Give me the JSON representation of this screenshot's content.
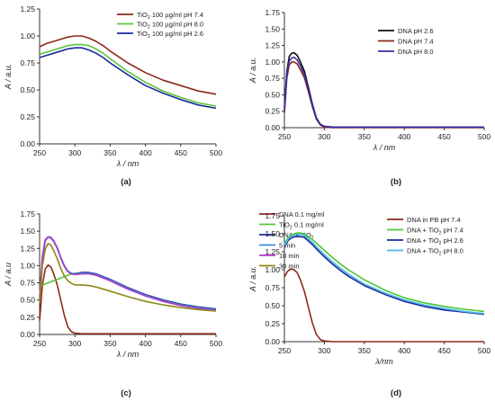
{
  "chart_data": [
    {
      "type": "line",
      "panel_label": "(a)",
      "xlabel": "λ / nm",
      "ylabel": "A / a.u.",
      "xlim": [
        250,
        500
      ],
      "ylim": [
        0,
        1.25
      ],
      "xticks": [
        "250",
        "300",
        "350",
        "400",
        "450",
        "500"
      ],
      "yticks": [
        "0.00",
        "0.25",
        "0.50",
        "0.75",
        "1.00",
        "1.25"
      ],
      "legend_position": "top-right",
      "series": [
        {
          "name": "TiO2 100 µg/ml pH 7.4",
          "color": "#8b2a1a",
          "x": [
            250,
            260,
            270,
            280,
            290,
            300,
            310,
            320,
            330,
            340,
            350,
            375,
            400,
            425,
            450,
            475,
            500
          ],
          "y": [
            0.9,
            0.93,
            0.95,
            0.97,
            0.99,
            1.0,
            1.0,
            0.98,
            0.95,
            0.91,
            0.86,
            0.75,
            0.66,
            0.59,
            0.54,
            0.49,
            0.46
          ]
        },
        {
          "name": "TiO2 100 µg/ml pH 8.0",
          "color": "#5ac43a",
          "x": [
            250,
            260,
            270,
            280,
            290,
            300,
            310,
            320,
            330,
            340,
            350,
            375,
            400,
            425,
            450,
            475,
            500
          ],
          "y": [
            0.83,
            0.85,
            0.87,
            0.89,
            0.91,
            0.92,
            0.92,
            0.91,
            0.88,
            0.84,
            0.79,
            0.67,
            0.57,
            0.49,
            0.43,
            0.38,
            0.35
          ]
        },
        {
          "name": "TiO2 100 µg/ml pH 2.6",
          "color": "#1a2a9a",
          "x": [
            250,
            260,
            270,
            280,
            290,
            300,
            310,
            320,
            330,
            340,
            350,
            375,
            400,
            425,
            450,
            475,
            500
          ],
          "y": [
            0.8,
            0.82,
            0.84,
            0.86,
            0.88,
            0.89,
            0.89,
            0.87,
            0.84,
            0.8,
            0.75,
            0.64,
            0.54,
            0.47,
            0.41,
            0.36,
            0.33
          ]
        }
      ]
    },
    {
      "type": "line",
      "panel_label": "(b)",
      "xlabel": "λ / nm",
      "ylabel": "A / a.u.",
      "xlim": [
        250,
        500
      ],
      "ylim": [
        0,
        1.75
      ],
      "xticks": [
        "250",
        "300",
        "350",
        "400",
        "450",
        "500"
      ],
      "yticks": [
        "0.00",
        "0.25",
        "0.50",
        "0.75",
        "1.00",
        "1.25",
        "1.50",
        "1.75"
      ],
      "legend_position": "top-right",
      "series": [
        {
          "name": "DNA pH 2.6",
          "color": "#111111",
          "x": [
            250,
            253,
            256,
            259,
            262,
            266,
            270,
            275,
            280,
            285,
            290,
            295,
            300,
            310,
            350,
            400,
            450,
            500
          ],
          "y": [
            0.3,
            0.85,
            1.08,
            1.13,
            1.14,
            1.1,
            1.0,
            0.86,
            0.62,
            0.36,
            0.15,
            0.05,
            0.02,
            0.01,
            0.01,
            0.01,
            0.01,
            0.01
          ]
        },
        {
          "name": "DNA pH 7.4",
          "color": "#8b2a1a",
          "x": [
            250,
            253,
            256,
            259,
            262,
            266,
            270,
            275,
            280,
            285,
            290,
            295,
            300,
            310,
            350,
            400,
            450,
            500
          ],
          "y": [
            0.22,
            0.75,
            0.95,
            1.0,
            1.0,
            0.97,
            0.88,
            0.76,
            0.55,
            0.32,
            0.13,
            0.04,
            0.01,
            0.0,
            0.0,
            0.0,
            0.0,
            0.0
          ]
        },
        {
          "name": "DNA pH 8.0",
          "color": "#3a2ab0",
          "x": [
            250,
            253,
            256,
            259,
            262,
            266,
            270,
            275,
            280,
            285,
            290,
            295,
            300,
            310,
            350,
            400,
            450,
            500
          ],
          "y": [
            0.26,
            0.8,
            1.01,
            1.06,
            1.07,
            1.03,
            0.94,
            0.81,
            0.58,
            0.34,
            0.14,
            0.05,
            0.02,
            0.01,
            0.01,
            0.01,
            0.01,
            0.01
          ]
        }
      ]
    },
    {
      "type": "line",
      "panel_label": "(c)",
      "xlabel": "λ / nm",
      "ylabel": "A / a.u",
      "xlim": [
        250,
        500
      ],
      "ylim": [
        0,
        1.75
      ],
      "xticks": [
        "250",
        "300",
        "350",
        "400",
        "450",
        "500"
      ],
      "yticks": [
        "0.00",
        "0.25",
        "0.50",
        "0.75",
        "1.00",
        "1.25",
        "1.50",
        "1.75"
      ],
      "legend_position": "top-right",
      "series": [
        {
          "name": "DNA 0.1 mg/ml",
          "color": "#8b2a1a",
          "x": [
            250,
            254,
            258,
            262,
            266,
            270,
            275,
            280,
            285,
            290,
            295,
            300,
            310,
            350,
            400,
            450,
            500
          ],
          "y": [
            0.2,
            0.72,
            0.95,
            1.01,
            0.98,
            0.88,
            0.72,
            0.5,
            0.28,
            0.11,
            0.04,
            0.02,
            0.01,
            0.01,
            0.01,
            0.01,
            0.01
          ]
        },
        {
          "name": "TiO2 0.1 mg/ml",
          "color": "#5ac43a",
          "x": [
            250,
            260,
            270,
            280,
            290,
            300,
            310,
            320,
            330,
            340,
            350,
            375,
            400,
            425,
            450,
            475,
            500
          ],
          "y": [
            0.7,
            0.74,
            0.78,
            0.82,
            0.86,
            0.89,
            0.9,
            0.89,
            0.87,
            0.83,
            0.78,
            0.66,
            0.56,
            0.49,
            0.44,
            0.4,
            0.37
          ]
        },
        {
          "name": "DNA + TiO2",
          "color": "#1a2a9a",
          "x": [
            250,
            254,
            258,
            262,
            266,
            270,
            275,
            280,
            285,
            290,
            295,
            300,
            310,
            320,
            330,
            350,
            375,
            400,
            425,
            450,
            475,
            500
          ],
          "y": [
            0.5,
            1.1,
            1.36,
            1.42,
            1.41,
            1.36,
            1.26,
            1.12,
            1.0,
            0.92,
            0.89,
            0.88,
            0.9,
            0.9,
            0.88,
            0.8,
            0.68,
            0.58,
            0.5,
            0.44,
            0.4,
            0.37
          ]
        },
        {
          "name": "5 min",
          "color": "#3a8de0",
          "x": [
            250,
            254,
            258,
            262,
            266,
            270,
            275,
            280,
            285,
            290,
            295,
            300,
            310,
            320,
            330,
            350,
            375,
            400,
            425,
            450,
            475,
            500
          ],
          "y": [
            0.52,
            1.12,
            1.37,
            1.42,
            1.41,
            1.36,
            1.26,
            1.12,
            1.0,
            0.92,
            0.89,
            0.88,
            0.89,
            0.89,
            0.87,
            0.79,
            0.67,
            0.57,
            0.49,
            0.43,
            0.39,
            0.36
          ]
        },
        {
          "name": "10 min",
          "color": "#b03ac8",
          "x": [
            250,
            254,
            258,
            262,
            266,
            270,
            275,
            280,
            285,
            290,
            295,
            300,
            310,
            320,
            330,
            350,
            375,
            400,
            425,
            450,
            475,
            500
          ],
          "y": [
            0.55,
            1.14,
            1.38,
            1.41,
            1.4,
            1.35,
            1.25,
            1.11,
            0.99,
            0.91,
            0.88,
            0.87,
            0.88,
            0.88,
            0.86,
            0.78,
            0.66,
            0.56,
            0.48,
            0.42,
            0.38,
            0.35
          ]
        },
        {
          "name": "30 min",
          "color": "#8a8a1a",
          "x": [
            250,
            254,
            258,
            262,
            266,
            270,
            275,
            280,
            285,
            290,
            295,
            300,
            310,
            320,
            330,
            350,
            375,
            400,
            425,
            450,
            475,
            500
          ],
          "y": [
            0.45,
            1.0,
            1.24,
            1.32,
            1.3,
            1.22,
            1.1,
            0.96,
            0.85,
            0.78,
            0.74,
            0.72,
            0.72,
            0.71,
            0.69,
            0.63,
            0.55,
            0.48,
            0.43,
            0.39,
            0.36,
            0.34
          ]
        }
      ]
    },
    {
      "type": "line",
      "panel_label": "(d)",
      "xlabel": "λ/nm",
      "ylabel": "A / a.u.",
      "xlim": [
        250,
        500
      ],
      "ylim": [
        0,
        1.75
      ],
      "xticks": [
        "250",
        "300",
        "350",
        "400",
        "450",
        "500"
      ],
      "yticks": [
        "0.00",
        "0.25",
        "0.50",
        "0.75",
        "1.00",
        "1.25",
        "1.50",
        "1.75"
      ],
      "legend_position": "top-right",
      "series": [
        {
          "name": "DNA in PB pH 7.4",
          "color": "#8b2a1a",
          "x": [
            250,
            254,
            258,
            262,
            266,
            270,
            275,
            280,
            285,
            290,
            295,
            300,
            310,
            350,
            400,
            450,
            500
          ],
          "y": [
            0.9,
            0.98,
            1.01,
            1.0,
            0.96,
            0.86,
            0.7,
            0.48,
            0.26,
            0.1,
            0.03,
            0.01,
            0.0,
            0.0,
            0.0,
            0.0,
            0.0
          ]
        },
        {
          "name": "DNA + TiO2 pH 7.4",
          "color": "#4ac83a",
          "x": [
            250,
            255,
            260,
            265,
            270,
            275,
            280,
            285,
            290,
            300,
            310,
            320,
            330,
            350,
            375,
            400,
            425,
            450,
            475,
            500
          ],
          "y": [
            1.36,
            1.45,
            1.49,
            1.51,
            1.51,
            1.5,
            1.46,
            1.42,
            1.37,
            1.27,
            1.17,
            1.08,
            1.0,
            0.86,
            0.72,
            0.61,
            0.54,
            0.49,
            0.45,
            0.42
          ]
        },
        {
          "name": "DNA + TiO2 pH 2.6",
          "color": "#1a2a9a",
          "x": [
            250,
            255,
            260,
            265,
            270,
            275,
            280,
            285,
            290,
            300,
            310,
            320,
            330,
            350,
            375,
            400,
            425,
            450,
            475,
            500
          ],
          "y": [
            1.32,
            1.41,
            1.45,
            1.46,
            1.46,
            1.45,
            1.4,
            1.35,
            1.29,
            1.18,
            1.08,
            0.99,
            0.91,
            0.78,
            0.66,
            0.56,
            0.49,
            0.44,
            0.41,
            0.38
          ]
        },
        {
          "name": "DNA + TiO2 pH 8.0",
          "color": "#4ab8e8",
          "x": [
            250,
            255,
            260,
            265,
            270,
            275,
            280,
            285,
            290,
            300,
            310,
            320,
            330,
            350,
            375,
            400,
            425,
            450,
            475,
            500
          ],
          "y": [
            1.34,
            1.43,
            1.47,
            1.49,
            1.49,
            1.48,
            1.43,
            1.38,
            1.32,
            1.21,
            1.11,
            1.02,
            0.94,
            0.8,
            0.68,
            0.58,
            0.51,
            0.46,
            0.42,
            0.39
          ]
        }
      ]
    }
  ]
}
